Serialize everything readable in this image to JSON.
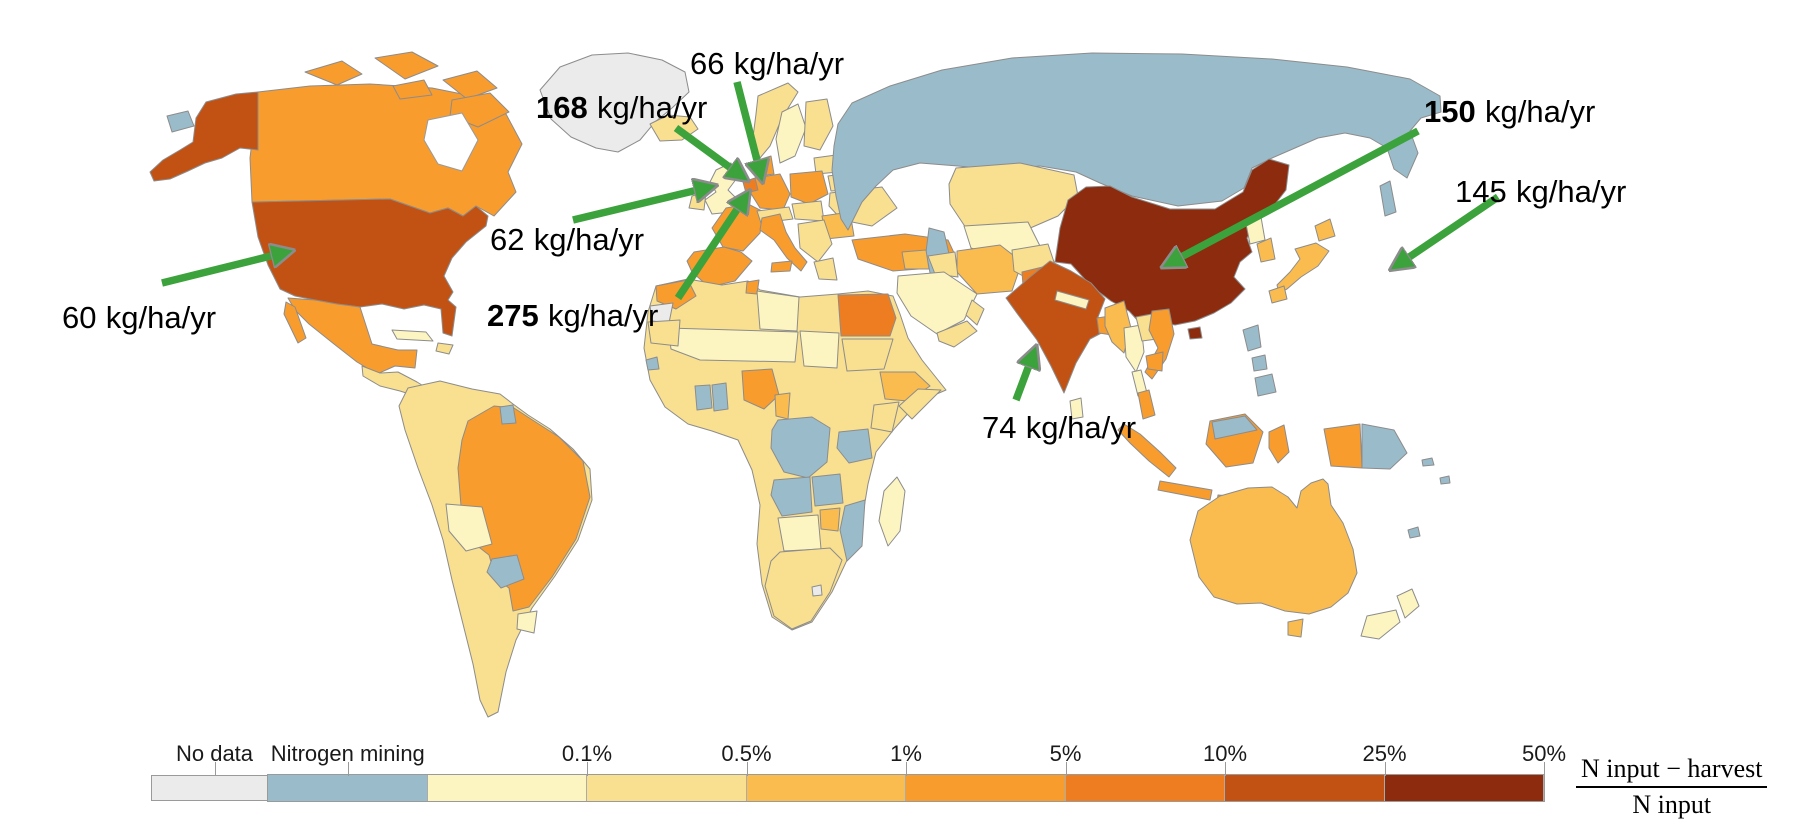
{
  "colors": {
    "background": "#FFFFFF",
    "arrow_green": "#3CA23C",
    "country_border": "#8C8C8C",
    "annotation_text": "#000000",
    "legend_text": "#1A1A1A",
    "buckets": {
      "nodata": "#EBEBEB",
      "mining": "#9ABCCA",
      "b1": "#FDF5C1",
      "b2": "#F9DF90",
      "b3": "#FBBC4F",
      "b4": "#F99C2E",
      "b5": "#EE7D22",
      "b6": "#C25114",
      "b7": "#8C2B0D",
      "sea": "#FFFFFF"
    }
  },
  "legend": {
    "no_data_label": "No data",
    "mining_label": "Nitrogen mining",
    "tick_labels": [
      "0.1%",
      "0.5%",
      "1%",
      "5%",
      "10%",
      "25%",
      "50%"
    ],
    "segments_order": [
      "mining",
      "b1",
      "b2",
      "b3",
      "b4",
      "b5",
      "b6",
      "b7"
    ],
    "formula_numerator": "N input − harvest",
    "formula_denominator": "N input"
  },
  "chart_data": {
    "type": "choropleth_map",
    "metric": "(N input − harvest) / N input",
    "legend_categories": [
      {
        "label": "No data",
        "color": "#EBEBEB"
      },
      {
        "label": "Nitrogen mining",
        "color": "#9ABCCA"
      },
      {
        "label": "0.1%",
        "color": "#FDF5C1"
      },
      {
        "label": "0.5%",
        "color": "#F9DF90"
      },
      {
        "label": "1%",
        "color": "#FBBC4F"
      },
      {
        "label": "5%",
        "color": "#F99C2E"
      },
      {
        "label": "10%",
        "color": "#EE7D22"
      },
      {
        "label": "25%",
        "color": "#C25114"
      },
      {
        "label": "50%",
        "color": "#8C2B0D"
      }
    ],
    "callouts": [
      {
        "region": "United States",
        "value": "60",
        "unit": "kg/ha/yr",
        "bold": false
      },
      {
        "region": "United Kingdom",
        "value": "62",
        "unit": "kg/ha/yr",
        "bold": false
      },
      {
        "region": "Denmark / northern Germany",
        "value": "66",
        "unit": "kg/ha/yr",
        "bold": false
      },
      {
        "region": "Northwestern Europe",
        "value": "168",
        "unit": "kg/ha/yr",
        "bold": true
      },
      {
        "region": "Netherlands / Belgium",
        "value": "275",
        "unit": "kg/ha/yr",
        "bold": true
      },
      {
        "region": "India",
        "value": "74",
        "unit": "kg/ha/yr",
        "bold": false
      },
      {
        "region": "China",
        "value": "150",
        "unit": "kg/ha/yr",
        "bold": true
      },
      {
        "region": "Japan",
        "value": "145",
        "unit": "kg/ha/yr",
        "bold": false
      }
    ],
    "region_buckets": {
      "alaska": "b6",
      "usa": "b6",
      "canada": "b4",
      "canada_arctic": "b4",
      "st_lawrence_island": "mining",
      "hudson_bay": "sea",
      "greenland": "nodata",
      "iceland": "b2",
      "mexico": "b4",
      "baja": "b4",
      "central_america": "b2",
      "cuba": "b1",
      "hispaniola": "b2",
      "south_america": "b2",
      "brazil": "b4",
      "paraguay": "mining",
      "bolivia": "b1",
      "uruguay": "b1",
      "suriname": "mining",
      "uk": "b1",
      "ireland": "b2",
      "norway": "b2",
      "sweden": "b1",
      "finland": "b2",
      "baltics": "b2",
      "belarus": "b2",
      "ukraine": "b2",
      "poland": "b4",
      "germany": "b4",
      "denmark": "b4",
      "benelux": "b5",
      "france": "b4",
      "iberia": "b4",
      "italy": "b4",
      "sicily": "b4",
      "alps": "b2",
      "czech_hungary": "b2",
      "romania_bulgaria": "b3",
      "balkans": "b2",
      "greece": "b2",
      "turkey": "b4",
      "russia": "mining",
      "sakhalin": "mining",
      "kazakhstan": "b2",
      "uzbek_turkmen": "b1",
      "caspian_sea": "mining",
      "iran": "b3",
      "iraq": "b2",
      "levant": "b3",
      "saudi_arabia": "b1",
      "yemen": "b2",
      "oman": "b2",
      "afghanistan": "b2",
      "pakistan": "b5",
      "india": "b6",
      "sri_lanka": "b1",
      "nepal": "b1",
      "bangladesh": "b4",
      "china": "b7",
      "hainan": "b7",
      "north_korea": "b1",
      "south_korea": "b3",
      "japan": "b3",
      "myanmar": "b3",
      "thailand": "b1",
      "laos": "b2",
      "vietnam": "b4",
      "cambodia": "b4",
      "malay_peninsula": "b4",
      "philippines": "mining",
      "sumatra": "b4",
      "java": "b4",
      "lesser_sunda": "b4",
      "borneo": "b4",
      "malaysia_borneo": "mining",
      "sulawesi": "b4",
      "west_papua": "b4",
      "papua_new_guinea": "mining",
      "pacific_islands": "mining",
      "australia": "b3",
      "tasmania": "b3",
      "new_zealand": "b1",
      "africa": "b2",
      "morocco": "b4",
      "tunisia": "b4",
      "western_sahara": "nodata",
      "libya": "b1",
      "egypt": "b5",
      "sudan": "b2",
      "chad": "b1",
      "mali_niger": "b1",
      "mauritania": "b2",
      "guinea": "mining",
      "nigeria": "b4",
      "ghana": "mining",
      "ivory_coast": "mining",
      "cameroon": "b3",
      "ethiopia": "b3",
      "somalia": "b2",
      "kenya": "b2",
      "drc": "mining",
      "tanzania": "mining",
      "angola": "mining",
      "zambia": "mining",
      "zimbabwe": "b3",
      "mozambique": "mining",
      "botswana_namibia": "b1",
      "south_africa": "b2",
      "lesotho": "nodata",
      "madagascar": "b1"
    }
  }
}
